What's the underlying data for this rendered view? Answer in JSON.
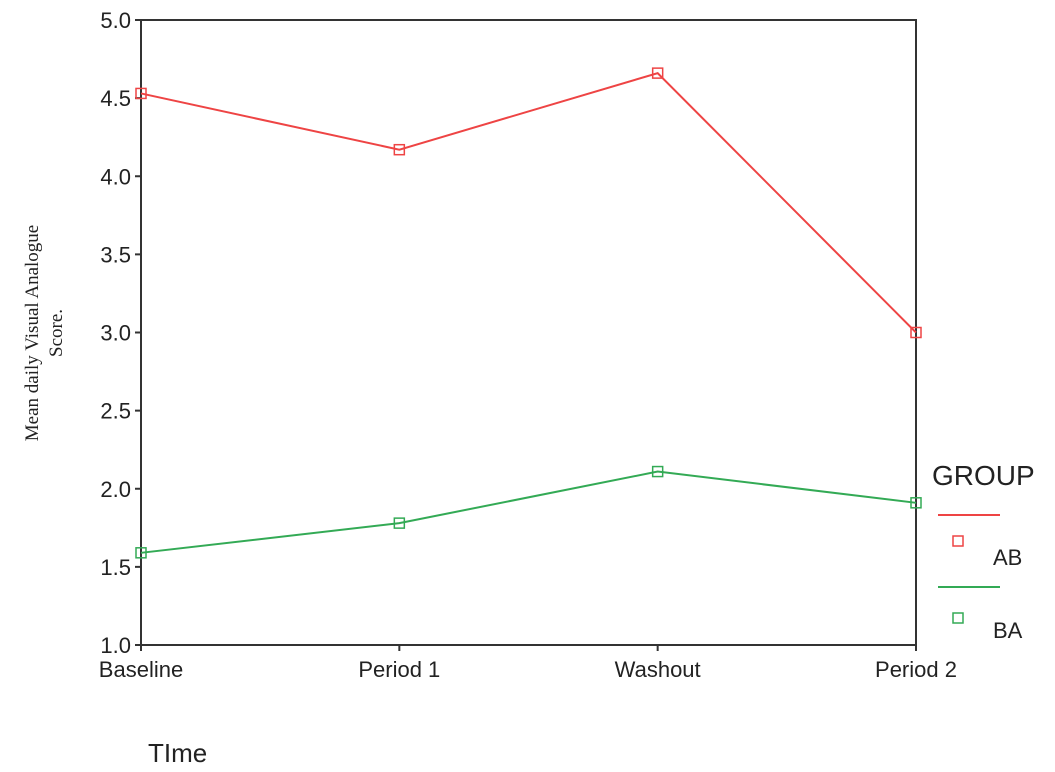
{
  "chart_data": {
    "type": "line",
    "categories": [
      "Baseline",
      "Period 1",
      "Washout",
      "Period 2"
    ],
    "series": [
      {
        "name": "AB",
        "values": [
          4.53,
          4.17,
          4.66,
          3.0
        ],
        "color": "#ee4444"
      },
      {
        "name": "BA",
        "values": [
          1.59,
          1.78,
          2.11,
          1.91
        ],
        "color": "#33aa55"
      }
    ],
    "title": "",
    "xlabel": "TIme",
    "ylabel": [
      "Mean daily Visual Analogue",
      "Score."
    ],
    "ylim": [
      1.0,
      5.0
    ],
    "yticks": [
      "1.0",
      "1.5",
      "2.0",
      "2.5",
      "3.0",
      "3.5",
      "4.0",
      "4.5",
      "5.0"
    ],
    "grid": false,
    "legend": {
      "title": "GROUP",
      "placement": "right"
    },
    "marker": "square"
  }
}
